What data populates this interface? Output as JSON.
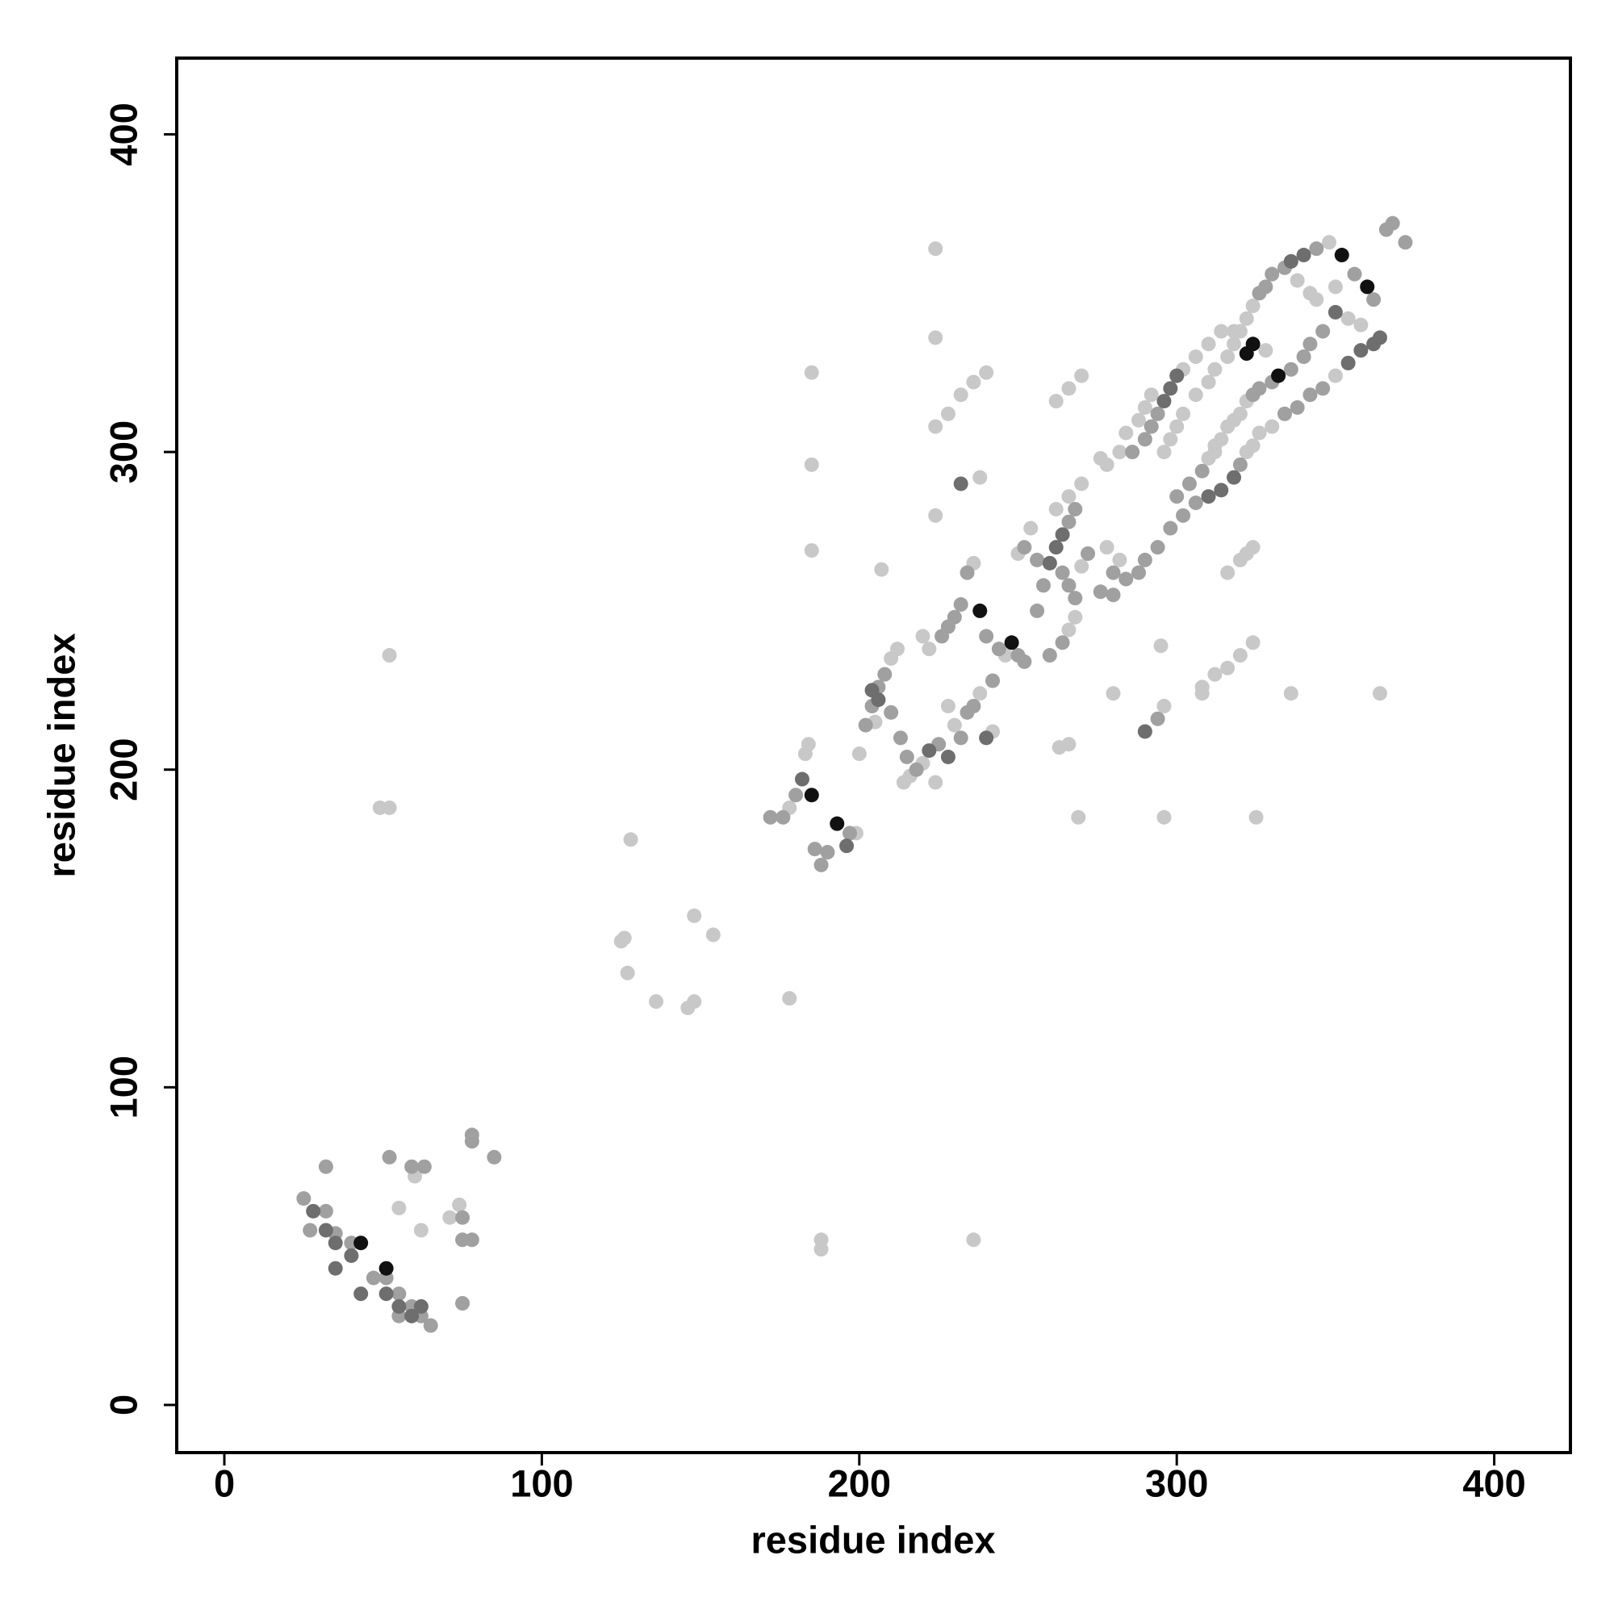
{
  "chart_data": {
    "type": "scatter",
    "xlabel": "residue index",
    "ylabel": "residue index",
    "xlim": [
      -15,
      424
    ],
    "ylim": [
      -15,
      424
    ],
    "xticks": [
      0,
      100,
      200,
      300,
      400
    ],
    "yticks": [
      0,
      100,
      200,
      300,
      400
    ],
    "series": [
      {
        "color": "#c8c8c8",
        "x": [
          55,
          60,
          62,
          71,
          74,
          128,
          126,
          125,
          127,
          136,
          146,
          148,
          148,
          154,
          178,
          52,
          49,
          52,
          188,
          188,
          236,
          185,
          185,
          185,
          224,
          224,
          224,
          207,
          269,
          296,
          325,
          263,
          280,
          308,
          336,
          364,
          295,
          224,
          178,
          183,
          184,
          199,
          200,
          212,
          210,
          205,
          214,
          216,
          220,
          236,
          246,
          238,
          230,
          228,
          222,
          220,
          242,
          254,
          262,
          250,
          270,
          266,
          268,
          282,
          278,
          322,
          324,
          302,
          278,
          282,
          284,
          288,
          290,
          292,
          276,
          270,
          266,
          310,
          312,
          296,
          298,
          300,
          302,
          306,
          310,
          312,
          316,
          318,
          320,
          322,
          324,
          348,
          328,
          318,
          314,
          310,
          306,
          350,
          330,
          326,
          342,
          338,
          350,
          344,
          316,
          320,
          322,
          324,
          316,
          320,
          324,
          308,
          312,
          262,
          266,
          270,
          232,
          236,
          240,
          228,
          224,
          238,
          266,
          296,
          358,
          354,
          322,
          320,
          318,
          316,
          314,
          312
        ],
        "y": [
          62,
          72,
          55,
          59,
          63,
          178,
          147,
          146,
          136,
          127,
          125,
          127,
          154,
          148,
          128,
          236,
          188,
          188,
          52,
          49,
          52,
          325,
          296,
          269,
          364,
          336,
          280,
          263,
          185,
          185,
          185,
          207,
          224,
          224,
          224,
          224,
          239,
          196,
          188,
          205,
          208,
          180,
          205,
          238,
          235,
          215,
          196,
          198,
          202,
          265,
          236,
          224,
          214,
          220,
          238,
          242,
          212,
          276,
          282,
          268,
          264,
          244,
          248,
          266,
          270,
          300,
          302,
          326,
          296,
          300,
          306,
          310,
          314,
          318,
          298,
          290,
          286,
          298,
          300,
          300,
          304,
          308,
          312,
          318,
          322,
          326,
          330,
          334,
          338,
          342,
          346,
          366,
          332,
          338,
          338,
          334,
          330,
          324,
          308,
          306,
          350,
          354,
          352,
          348,
          262,
          266,
          268,
          270,
          232,
          236,
          240,
          226,
          230,
          316,
          320,
          324,
          318,
          322,
          325,
          312,
          308,
          292,
          208,
          220,
          340,
          342,
          316,
          312,
          310,
          308,
          304,
          302
        ]
      },
      {
        "color": "#a0a0a0",
        "x": [
          25,
          32,
          27,
          35,
          40,
          47,
          51,
          55,
          55,
          59,
          62,
          65,
          32,
          52,
          59,
          63,
          75,
          75,
          78,
          78,
          78,
          85,
          75,
          172,
          176,
          180,
          186,
          188,
          190,
          197,
          202,
          204,
          206,
          208,
          210,
          213,
          215,
          218,
          225,
          226,
          228,
          230,
          232,
          234,
          240,
          244,
          250,
          252,
          242,
          232,
          256,
          258,
          266,
          268,
          252,
          256,
          264,
          266,
          268,
          276,
          280,
          272,
          260,
          264,
          280,
          284,
          288,
          290,
          294,
          298,
          302,
          306,
          320,
          286,
          290,
          292,
          294,
          300,
          304,
          308,
          326,
          328,
          330,
          334,
          344,
          356,
          362,
          366,
          368,
          372,
          346,
          342,
          340,
          336,
          330,
          326,
          324,
          342,
          346,
          338,
          334,
          294,
          234,
          236
        ],
        "y": [
          65,
          61,
          55,
          54,
          51,
          40,
          40,
          35,
          28,
          31,
          28,
          25,
          75,
          78,
          75,
          75,
          59,
          52,
          52,
          85,
          83,
          78,
          32,
          185,
          185,
          192,
          175,
          170,
          174,
          180,
          214,
          220,
          226,
          230,
          218,
          210,
          204,
          200,
          208,
          242,
          245,
          248,
          252,
          262,
          242,
          238,
          236,
          234,
          228,
          210,
          250,
          258,
          278,
          282,
          270,
          266,
          262,
          258,
          254,
          256,
          262,
          268,
          236,
          240,
          255,
          260,
          262,
          266,
          270,
          276,
          280,
          284,
          296,
          300,
          304,
          308,
          312,
          286,
          290,
          294,
          350,
          352,
          356,
          358,
          364,
          356,
          348,
          370,
          372,
          366,
          338,
          334,
          330,
          326,
          322,
          320,
          318,
          318,
          320,
          314,
          312,
          216,
          218,
          220
        ]
      },
      {
        "color": "#6e6e6e",
        "x": [
          35,
          35,
          43,
          51,
          55,
          59,
          62,
          40,
          32,
          28,
          182,
          196,
          222,
          228,
          240,
          260,
          262,
          264,
          296,
          298,
          300,
          310,
          314,
          318,
          336,
          340,
          350,
          354,
          358,
          362,
          364,
          290,
          232,
          204,
          206
        ],
        "y": [
          51,
          43,
          35,
          35,
          31,
          28,
          31,
          47,
          55,
          61,
          197,
          176,
          206,
          204,
          210,
          265,
          270,
          274,
          316,
          320,
          324,
          286,
          288,
          292,
          360,
          362,
          344,
          328,
          332,
          334,
          336,
          212,
          290,
          225,
          222
        ]
      },
      {
        "color": "#111111",
        "x": [
          43,
          51,
          185,
          193,
          238,
          248,
          352,
          360,
          332,
          324,
          322
        ],
        "y": [
          51,
          43,
          192,
          183,
          250,
          240,
          362,
          352,
          324,
          334,
          331
        ]
      }
    ]
  }
}
